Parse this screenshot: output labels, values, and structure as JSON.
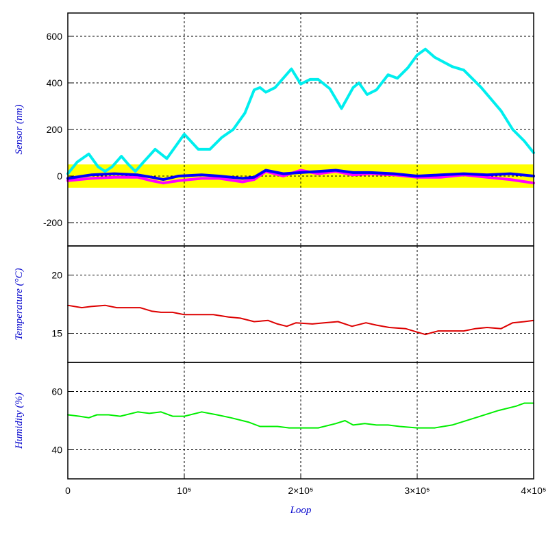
{
  "chart_data": [
    {
      "type": "line",
      "ylabel": "Sensor (nm)",
      "xlim": [
        0,
        400000
      ],
      "ylim": [
        -300,
        700
      ],
      "y_ticks": [
        -200,
        0,
        200,
        400,
        600
      ],
      "y_tick_labels": [
        "-200",
        "0",
        "200",
        "400",
        "600"
      ],
      "grid": true,
      "band": {
        "from": -50,
        "to": 50,
        "color": "#ffff00"
      },
      "series": [
        {
          "color": "#00eeee",
          "x": [
            0,
            8000,
            18000,
            26000,
            32000,
            38000,
            46000,
            52000,
            58000,
            65000,
            75000,
            85000,
            100000,
            112000,
            122000,
            132000,
            142000,
            152000,
            160000,
            165000,
            170000,
            178000,
            185000,
            192000,
            200000,
            208000,
            215000,
            225000,
            235000,
            245000,
            250000,
            257000,
            265000,
            275000,
            283000,
            292000,
            300000,
            307000,
            315000,
            330000,
            340000,
            355000,
            372000,
            382000,
            392000,
            400000
          ],
          "y": [
            10,
            60,
            95,
            40,
            20,
            40,
            85,
            50,
            20,
            60,
            115,
            75,
            180,
            115,
            115,
            165,
            200,
            270,
            370,
            380,
            360,
            380,
            420,
            460,
            395,
            415,
            415,
            375,
            290,
            380,
            400,
            350,
            370,
            435,
            420,
            465,
            520,
            545,
            510,
            470,
            455,
            380,
            280,
            200,
            150,
            100
          ]
        },
        {
          "color": "#ff00ff",
          "x": [
            0,
            20000,
            40000,
            60000,
            72000,
            82000,
            95000,
            115000,
            130000,
            150000,
            160000,
            170000,
            185000,
            200000,
            215000,
            230000,
            245000,
            260000,
            280000,
            300000,
            320000,
            340000,
            360000,
            380000,
            400000
          ],
          "y": [
            -20,
            -10,
            -5,
            -5,
            -20,
            -30,
            -20,
            -10,
            -10,
            -25,
            -15,
            20,
            0,
            25,
            10,
            20,
            5,
            10,
            5,
            -5,
            -5,
            5,
            -5,
            -15,
            -30
          ]
        },
        {
          "color": "#0000ff",
          "x": [
            0,
            20000,
            40000,
            60000,
            72000,
            82000,
            95000,
            115000,
            130000,
            150000,
            160000,
            170000,
            185000,
            200000,
            215000,
            230000,
            245000,
            260000,
            280000,
            300000,
            320000,
            340000,
            360000,
            380000,
            400000
          ],
          "y": [
            -10,
            5,
            10,
            5,
            -5,
            -15,
            0,
            5,
            0,
            -10,
            -5,
            25,
            10,
            15,
            20,
            25,
            15,
            15,
            10,
            0,
            5,
            10,
            5,
            10,
            0
          ]
        }
      ]
    },
    {
      "type": "line",
      "ylabel": "Temperature (°C)",
      "xlim": [
        0,
        400000
      ],
      "ylim": [
        12.5,
        22.5
      ],
      "y_ticks": [
        15,
        20
      ],
      "y_tick_labels": [
        "15",
        "20"
      ],
      "grid": true,
      "series": [
        {
          "color": "#dd0000",
          "x": [
            0,
            12000,
            20000,
            32000,
            42000,
            62000,
            72000,
            80000,
            90000,
            100000,
            115000,
            125000,
            138000,
            148000,
            160000,
            172000,
            180000,
            188000,
            196000,
            210000,
            220000,
            232000,
            244000,
            256000,
            265000,
            276000,
            290000,
            300000,
            307000,
            318000,
            332000,
            340000,
            350000,
            360000,
            372000,
            382000,
            392000,
            400000
          ],
          "y": [
            17.4,
            17.2,
            17.3,
            17.4,
            17.2,
            17.2,
            16.9,
            16.8,
            16.8,
            16.6,
            16.6,
            16.6,
            16.4,
            16.3,
            16.0,
            16.1,
            15.8,
            15.6,
            15.9,
            15.8,
            15.9,
            16.0,
            15.6,
            15.9,
            15.7,
            15.5,
            15.4,
            15.1,
            14.9,
            15.2,
            15.2,
            15.2,
            15.4,
            15.5,
            15.4,
            15.9,
            16.0,
            16.1
          ]
        }
      ]
    },
    {
      "type": "line",
      "ylabel": "Humidity (%)",
      "xlabel": "Loop",
      "xlim": [
        0,
        400000
      ],
      "ylim": [
        30,
        70
      ],
      "y_ticks": [
        40,
        60
      ],
      "y_tick_labels": [
        "40",
        "60"
      ],
      "x_ticks": [
        0,
        100000,
        200000,
        300000,
        400000
      ],
      "x_tick_labels": [
        "0",
        "10⁵",
        "2×10⁵",
        "3×10⁵",
        "4×10⁵"
      ],
      "grid": true,
      "series": [
        {
          "color": "#00ee00",
          "x": [
            0,
            10000,
            18000,
            25000,
            35000,
            45000,
            60000,
            70000,
            80000,
            90000,
            100000,
            115000,
            128000,
            140000,
            155000,
            165000,
            180000,
            190000,
            200000,
            215000,
            230000,
            238000,
            245000,
            255000,
            265000,
            275000,
            285000,
            300000,
            315000,
            330000,
            350000,
            370000,
            385000,
            392000,
            400000
          ],
          "y": [
            52,
            51.5,
            51,
            52,
            52,
            51.5,
            53,
            52.5,
            53,
            51.5,
            51.5,
            53,
            52,
            51,
            49.5,
            48,
            48,
            47.5,
            47.5,
            47.5,
            49,
            50,
            48.5,
            49,
            48.5,
            48.5,
            48,
            47.5,
            47.5,
            48.5,
            51,
            53.5,
            55,
            56,
            56
          ]
        }
      ]
    }
  ]
}
